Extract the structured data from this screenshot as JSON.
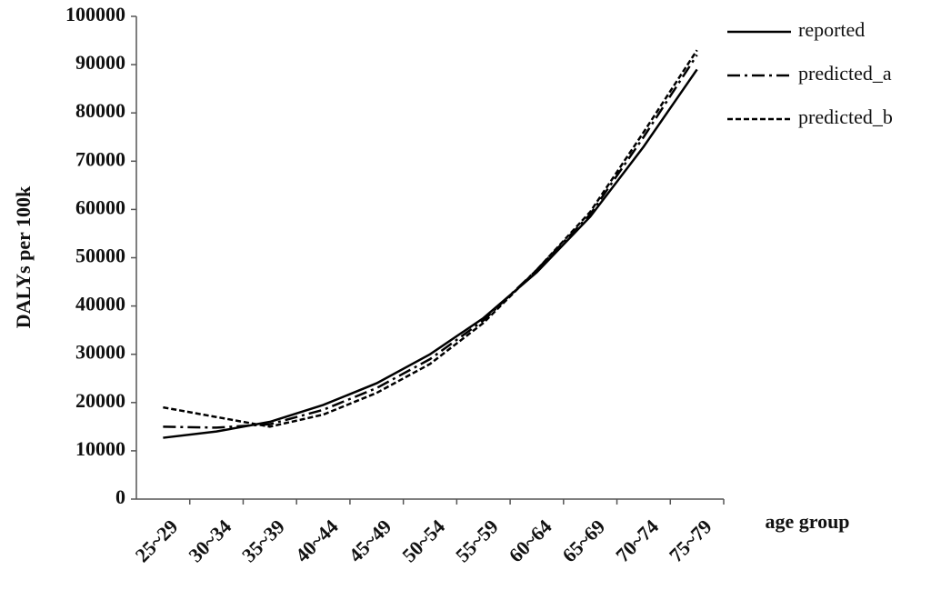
{
  "chart_data": {
    "type": "line",
    "y_label": "DALYs per 100k",
    "x_label": "age group",
    "categories": [
      "25~29",
      "30~34",
      "35~39",
      "40~44",
      "45~49",
      "50~54",
      "55~59",
      "60~64",
      "65~69",
      "70~74",
      "75~79"
    ],
    "series": [
      {
        "name": "reported",
        "color": "#000000",
        "dash": "solid",
        "values": [
          12700,
          14000,
          16000,
          19500,
          24000,
          30000,
          37500,
          47000,
          58500,
          73000,
          89000
        ]
      },
      {
        "name": "predicted_a",
        "color": "#000000",
        "dash": "dash-dot",
        "values": [
          15000,
          14800,
          15500,
          18500,
          23000,
          29000,
          37000,
          47500,
          59000,
          75000,
          92000
        ]
      },
      {
        "name": "predicted_b",
        "color": "#000000",
        "dash": "dashed",
        "values": [
          19000,
          17000,
          15000,
          17500,
          22000,
          28000,
          36500,
          47500,
          59500,
          76000,
          93000
        ]
      }
    ],
    "ylim": [
      0,
      100000
    ],
    "yticks": [
      0,
      10000,
      20000,
      30000,
      40000,
      50000,
      60000,
      70000,
      80000,
      90000,
      100000
    ],
    "grid": false,
    "legend": "top-right"
  }
}
